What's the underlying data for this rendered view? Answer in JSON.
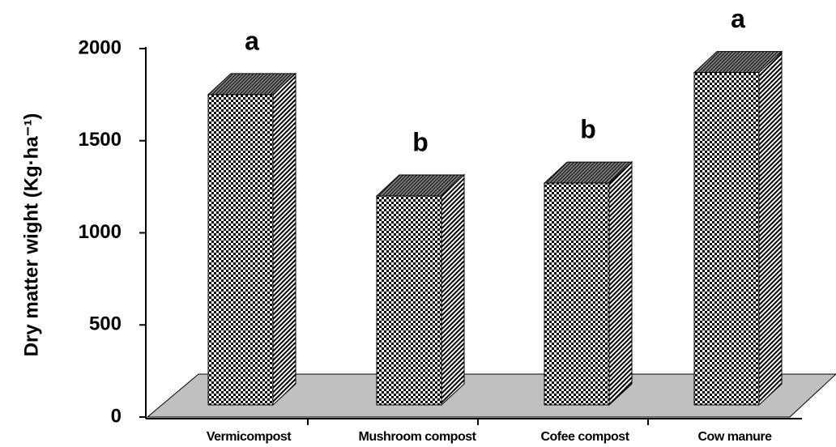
{
  "chart_data": {
    "type": "bar3d",
    "y_label": "Dry matter wight (Kg·ha⁻¹)",
    "categories": [
      "Vermicompost",
      "Mushroom compost",
      "Cofee compost",
      "Cow manure"
    ],
    "values": [
      1750,
      1200,
      1270,
      1870
    ],
    "annotations": [
      "a",
      "b",
      "b",
      "a"
    ],
    "ylim": [
      0,
      2000
    ],
    "yticks": [
      0,
      500,
      1000,
      1500,
      2000
    ]
  }
}
